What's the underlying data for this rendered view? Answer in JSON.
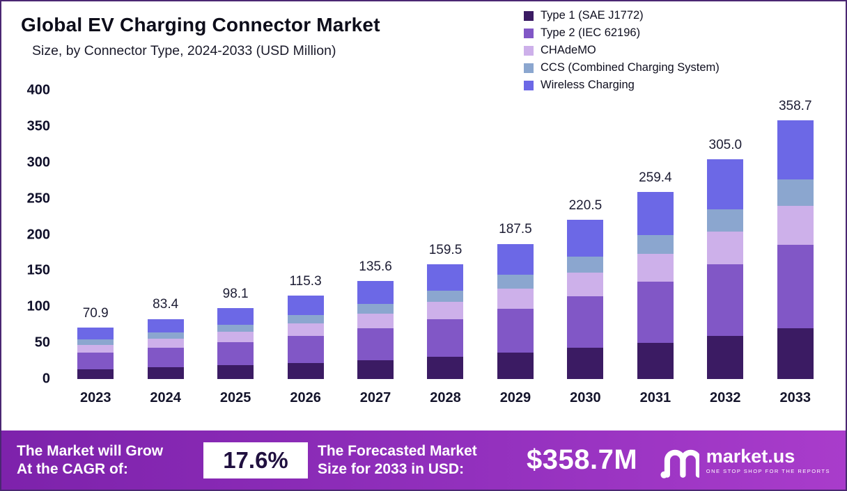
{
  "header": {
    "title": "Global EV Charging Connector Market",
    "subtitle": "Size, by Connector Type, 2024-2033 (USD Million)"
  },
  "chart_data": {
    "type": "bar",
    "stacked": true,
    "title": "Global EV Charging Connector Market Size, by Connector Type, 2024-2033 (USD Million)",
    "categories": [
      "2023",
      "2024",
      "2025",
      "2026",
      "2027",
      "2028",
      "2029",
      "2030",
      "2031",
      "2032",
      "2033"
    ],
    "totals": [
      "70.9",
      "83.4",
      "98.1",
      "115.3",
      "135.6",
      "159.5",
      "187.5",
      "220.5",
      "259.4",
      "305.0",
      "358.7"
    ],
    "series": [
      {
        "name": "Type 1 (SAE J1772)",
        "color": "#3b1b63",
        "values": [
          13.8,
          16.3,
          19.1,
          22.5,
          26.4,
          31.1,
          36.6,
          43.0,
          50.6,
          59.5,
          69.9
        ]
      },
      {
        "name": "Type 2 (IEC 62196)",
        "color": "#8157c6",
        "values": [
          23.0,
          27.1,
          31.9,
          37.5,
          44.1,
          51.8,
          60.9,
          71.7,
          84.3,
          99.1,
          116.6
        ]
      },
      {
        "name": "CHAdeMO",
        "color": "#cdb0ea",
        "values": [
          10.6,
          12.5,
          14.7,
          17.3,
          20.3,
          23.9,
          28.1,
          33.1,
          38.9,
          45.8,
          53.8
        ]
      },
      {
        "name": "CCS (Combined Charging System)",
        "color": "#8ba6cf",
        "values": [
          7.1,
          8.3,
          9.8,
          11.5,
          13.6,
          16.0,
          18.8,
          22.0,
          25.9,
          30.5,
          35.9
        ]
      },
      {
        "name": "Wireless Charging",
        "color": "#6c68e6",
        "values": [
          16.4,
          19.2,
          22.6,
          26.5,
          31.2,
          36.7,
          43.1,
          50.7,
          59.7,
          70.1,
          82.5
        ]
      }
    ],
    "xlabel": "",
    "ylabel": "",
    "ylim": [
      0,
      400
    ],
    "yticks": [
      0,
      50,
      100,
      150,
      200,
      250,
      300,
      350,
      400
    ],
    "grid": false,
    "legend_position": "top-right"
  },
  "banner": {
    "cagr_label_line1": "The Market will Grow",
    "cagr_label_line2": "At the CAGR of:",
    "cagr_value": "17.6%",
    "forecast_label_line1": "The Forecasted Market",
    "forecast_label_line2": "Size for 2033 in USD:",
    "forecast_value": "$358.7M",
    "logo_text": "market.us",
    "logo_tagline": "ONE STOP SHOP FOR THE REPORTS"
  }
}
